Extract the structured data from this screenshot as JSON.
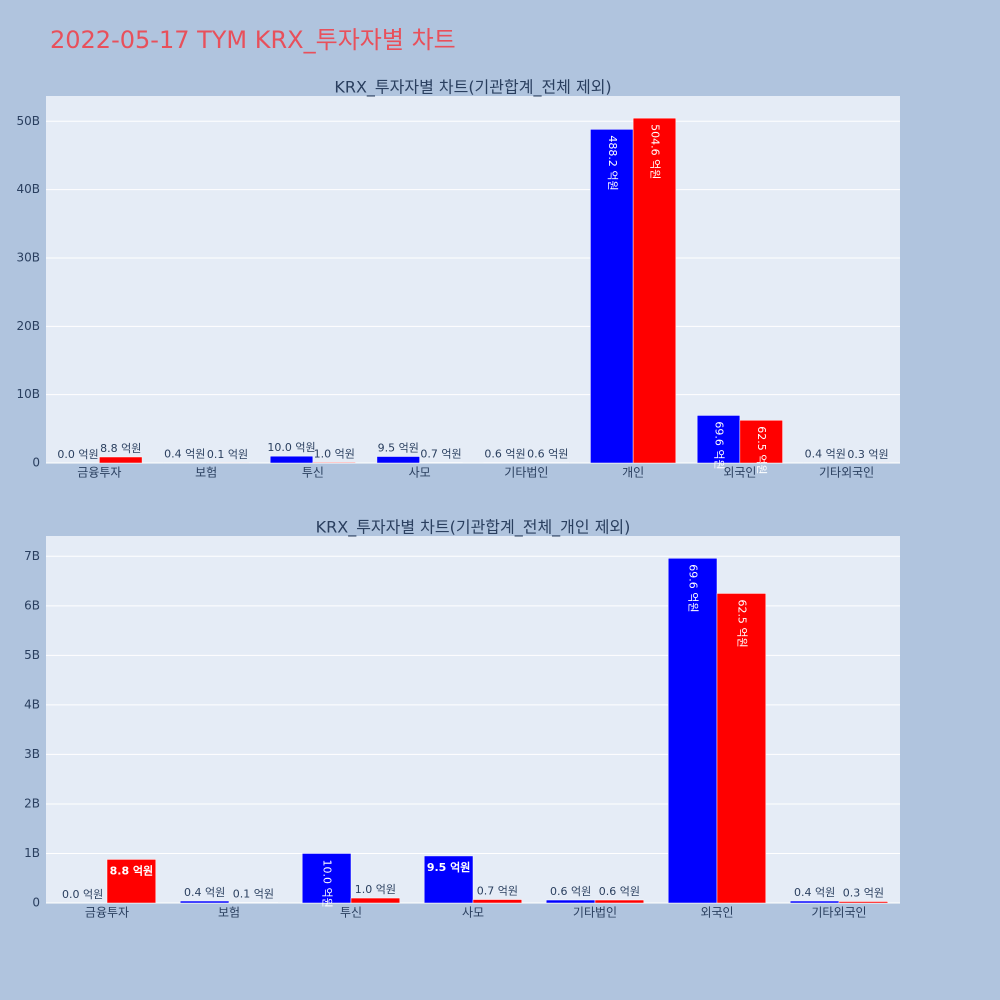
{
  "title": "2022-05-17 TYM KRX_투자자별 차트",
  "chart_data": [
    {
      "type": "bar",
      "title": "KRX_투자자별 차트(기관합계_전체 제외)",
      "categories": [
        "금융투자",
        "보험",
        "투신",
        "사모",
        "기타법인",
        "개인",
        "외국인",
        "기타외국인"
      ],
      "series": [
        {
          "color": "#0000ff",
          "values": [
            0,
            40000000,
            1000000000,
            950000000,
            60000000,
            48820000000,
            6960000000,
            40000000
          ],
          "value_labels": [
            "0.0 억원",
            "0.4 억원",
            "10.0 억원",
            "9.5 억원",
            "0.6 억원",
            "488.2 억원",
            "69.6 억원",
            "0.4 억원"
          ]
        },
        {
          "color": "#ff0000",
          "values": [
            880000000,
            10000000,
            100000000,
            70000000,
            60000000,
            50460000000,
            6250000000,
            30000000
          ],
          "value_labels": [
            "8.8 억원",
            "0.1 억원",
            "1.0 억원",
            "0.7 억원",
            "0.6 억원",
            "504.6 억원",
            "62.5 억원",
            "0.3 억원"
          ]
        }
      ],
      "ylim": [
        0,
        53700000000
      ],
      "yticks": [
        0,
        {
          "value": 10000000000,
          "label": "10B"
        },
        {
          "value": 20000000000,
          "label": "20B"
        },
        {
          "value": 30000000000,
          "label": "30B"
        },
        {
          "value": 40000000000,
          "label": "40B"
        },
        {
          "value": 50000000000,
          "label": "50B"
        }
      ],
      "grid": true
    },
    {
      "type": "bar",
      "title": "KRX_투자자별 차트(기관합계_전체_개인 제외)",
      "categories": [
        "금융투자",
        "보험",
        "투신",
        "사모",
        "기타법인",
        "외국인",
        "기타외국인"
      ],
      "series": [
        {
          "color": "#0000ff",
          "values": [
            0,
            40000000,
            1000000000,
            950000000,
            60000000,
            6960000000,
            40000000
          ],
          "value_labels": [
            "0.0 억원",
            "0.4 억원",
            "10.0 억원",
            "9.5 억원",
            "0.6 억원",
            "69.6 억원",
            "0.4 억원"
          ]
        },
        {
          "color": "#ff0000",
          "values": [
            880000000,
            10000000,
            100000000,
            70000000,
            60000000,
            6250000000,
            30000000
          ],
          "value_labels": [
            "8.8 억원",
            "0.1 억원",
            "1.0 억원",
            "0.7 억원",
            "0.6 억원",
            "62.5 억원",
            "0.3 억원"
          ]
        }
      ],
      "ylim": [
        0,
        7410000000
      ],
      "yticks": [
        0,
        {
          "value": 1000000000,
          "label": "1B"
        },
        {
          "value": 2000000000,
          "label": "2B"
        },
        {
          "value": 3000000000,
          "label": "3B"
        },
        {
          "value": 4000000000,
          "label": "4B"
        },
        {
          "value": 5000000000,
          "label": "5B"
        },
        {
          "value": 6000000000,
          "label": "6B"
        },
        {
          "value": 7000000000,
          "label": "7B"
        }
      ],
      "grid": true
    }
  ]
}
